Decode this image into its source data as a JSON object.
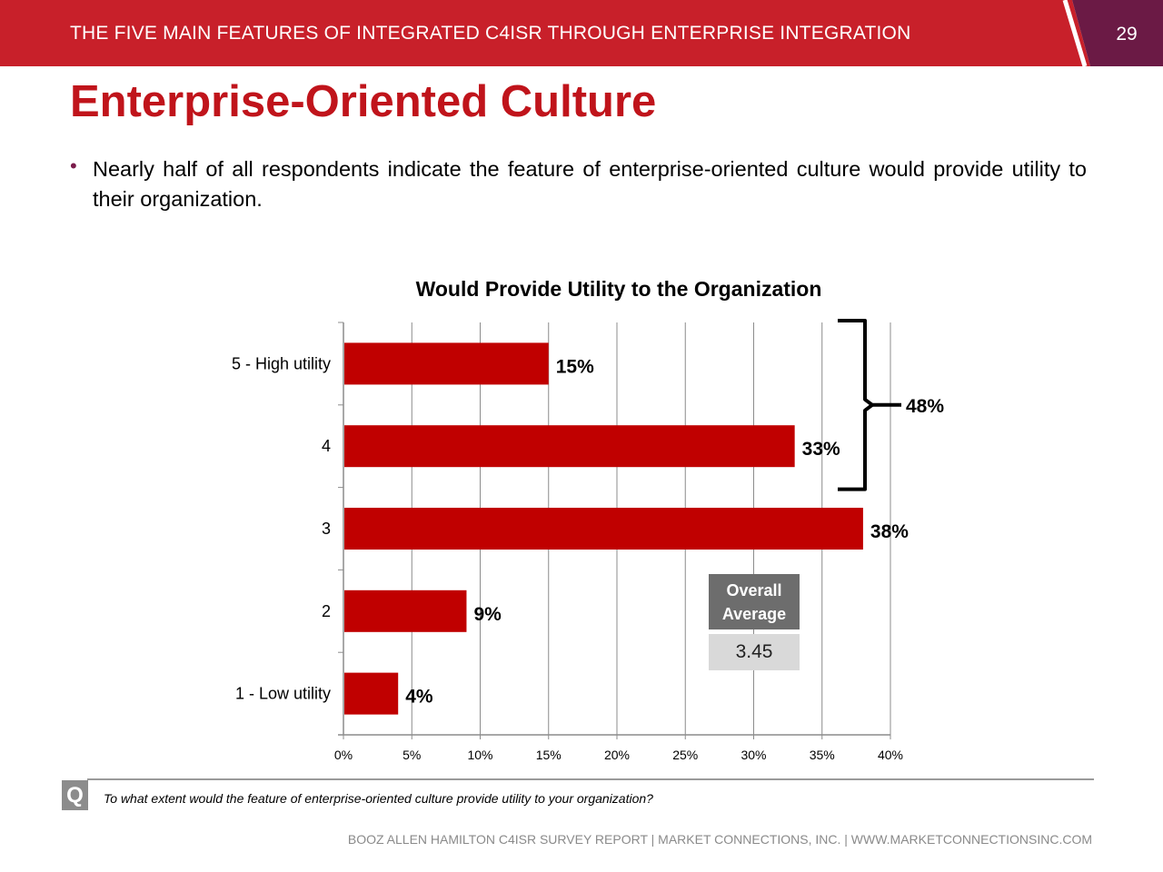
{
  "header": {
    "title": "THE FIVE MAIN FEATURES OF INTEGRATED C4ISR THROUGH ENTERPRISE INTEGRATION",
    "page_number": "29",
    "bar_color": "#c8202a",
    "tab_color": "#6b1a45"
  },
  "slide": {
    "title": "Enterprise-Oriented Culture",
    "bullet_mark": "•",
    "bullet": "Nearly half of all respondents indicate the feature of enterprise-oriented culture would provide utility to their organization."
  },
  "chart_data": {
    "type": "bar",
    "orientation": "horizontal",
    "title": "Would Provide Utility to the Organization",
    "categories": [
      "5 - High utility",
      "4",
      "3",
      "2",
      "1 - Low utility"
    ],
    "values": [
      15,
      33,
      38,
      9,
      4
    ],
    "value_labels": [
      "15%",
      "33%",
      "38%",
      "9%",
      "4%"
    ],
    "xlim": [
      0,
      40
    ],
    "x_ticks": [
      "0%",
      "5%",
      "10%",
      "15%",
      "20%",
      "25%",
      "30%",
      "35%",
      "40%"
    ],
    "grid": true,
    "bar_color": "#c00000",
    "bracket": {
      "label": "48%",
      "covers": [
        "5 - High utility",
        "4"
      ]
    }
  },
  "average": {
    "label": "Overall Average",
    "value": "3.45"
  },
  "question": {
    "icon": "Q",
    "text": "To what extent would the feature of enterprise-oriented culture provide utility to your organization?"
  },
  "footer": {
    "text": "BOOZ ALLEN HAMILTON C4ISR SURVEY REPORT   |   MARKET CONNECTIONS, INC.  |  WWW.MARKETCONNECTIONSINC.COM"
  }
}
